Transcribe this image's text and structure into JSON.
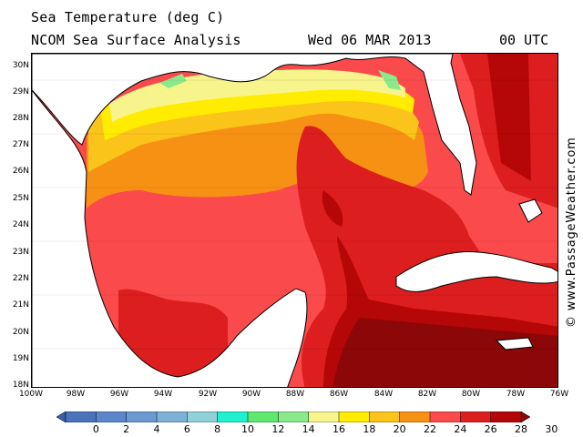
{
  "header": {
    "title": "Sea Temperature (deg C)",
    "subtitle": "NCOM Sea Surface Analysis",
    "date": "Wed 06 MAR 2013",
    "time": "00 UTC"
  },
  "credit": "© www.PassageWeather.com",
  "map": {
    "lat_labels": [
      "30N",
      "29N",
      "28N",
      "27N",
      "26N",
      "25N",
      "24N",
      "23N",
      "22N",
      "21N",
      "20N",
      "19N",
      "18N"
    ],
    "lon_labels": [
      "100W",
      "98W",
      "96W",
      "94W",
      "92W",
      "90W",
      "88W",
      "86W",
      "84W",
      "82W",
      "80W",
      "78W",
      "76W"
    ],
    "colors": {
      "land": "#ffffff",
      "coast": "#000000",
      "border": "#808080",
      "t12": "#8ae98a",
      "t16": "#f8f48c",
      "t18": "#ffec00",
      "t20": "#fbc41a",
      "t22": "#f79114",
      "t24": "#fb4a4c",
      "t26": "#dd1e1e",
      "t28": "#b50707",
      "t30": "#8c0707"
    }
  },
  "colorbar": {
    "labels": [
      "0",
      "2",
      "4",
      "6",
      "8",
      "10",
      "12",
      "14",
      "16",
      "18",
      "20",
      "22",
      "24",
      "26",
      "28",
      "30"
    ],
    "colors": [
      "#3a5fa8",
      "#4a73bb",
      "#5a87c9",
      "#6a9ad0",
      "#7cb0d6",
      "#8fd0d9",
      "#1ff0d0",
      "#5ee870",
      "#8ae98a",
      "#f8f48c",
      "#ffec00",
      "#fbc41a",
      "#f79114",
      "#fb4a4c",
      "#dd1e1e",
      "#b50707",
      "#8c0707"
    ]
  }
}
